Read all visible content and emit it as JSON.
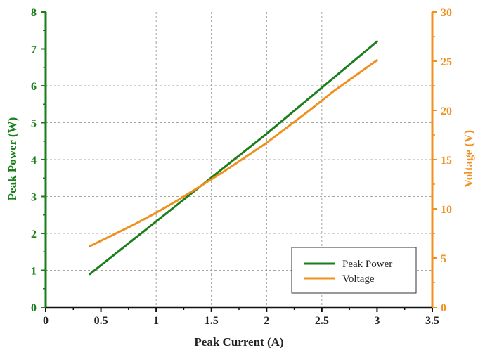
{
  "chart_data": {
    "type": "line",
    "xlabel": "Peak Current (A)",
    "ylabel_left": "Peak Power (W)",
    "ylabel_right": "Voltage (V)",
    "xlim": [
      0,
      3.5
    ],
    "ylim_left": [
      0,
      8
    ],
    "ylim_right": [
      0,
      30
    ],
    "x_ticks": [
      "0",
      "0.5",
      "1",
      "1.5",
      "2",
      "2.5",
      "3",
      "3.5"
    ],
    "y_left_ticks": [
      "0",
      "1",
      "2",
      "3",
      "4",
      "5",
      "6",
      "7",
      "8"
    ],
    "y_right_ticks": [
      "0",
      "5",
      "10",
      "15",
      "20",
      "25",
      "30"
    ],
    "grid": true,
    "legend_position": "bottom-right",
    "series": [
      {
        "name": "Peak Power",
        "axis": "left",
        "color": "#1a7f1a",
        "x": [
          0.4,
          0.8,
          1.2,
          1.6,
          2.0,
          2.4,
          2.8,
          3.0
        ],
        "y": [
          0.9,
          1.85,
          2.8,
          3.75,
          4.7,
          5.7,
          6.7,
          7.2
        ]
      },
      {
        "name": "Voltage",
        "axis": "right",
        "color": "#f0901e",
        "x": [
          0.4,
          0.6,
          0.8,
          1.0,
          1.2,
          1.4,
          1.6,
          1.8,
          2.0,
          2.2,
          2.4,
          2.6,
          2.8,
          3.0
        ],
        "y": [
          6.2,
          7.3,
          8.4,
          9.6,
          10.9,
          12.3,
          13.7,
          15.2,
          16.7,
          18.4,
          20.1,
          21.9,
          23.5,
          25.1
        ]
      }
    ]
  }
}
